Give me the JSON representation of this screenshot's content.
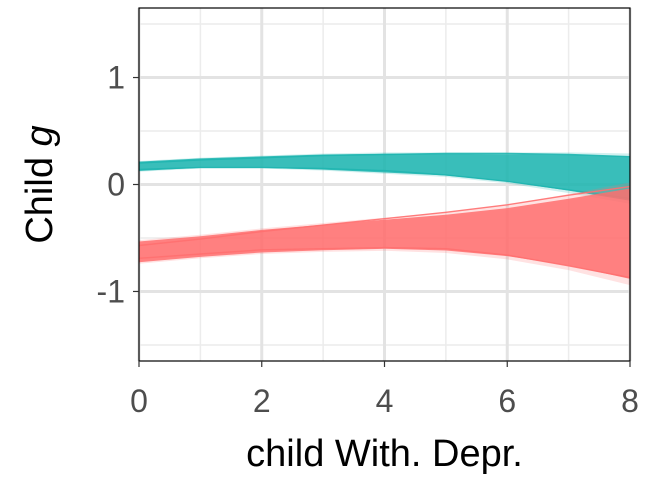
{
  "chart_data": {
    "type": "area",
    "xlabel": "child With. Depr.",
    "ylabel": {
      "prefix": "Child ",
      "symbol": "g"
    },
    "xlim": [
      0,
      8
    ],
    "ylim": [
      -1.65,
      1.65
    ],
    "x_ticks": [
      {
        "value": 0,
        "label": "0"
      },
      {
        "value": 2,
        "label": "2"
      },
      {
        "value": 4,
        "label": "4"
      },
      {
        "value": 6,
        "label": "6"
      },
      {
        "value": 8,
        "label": "8"
      }
    ],
    "y_ticks": [
      {
        "value": -1,
        "label": "-1"
      },
      {
        "value": 0,
        "label": "0"
      },
      {
        "value": 1,
        "label": "1"
      }
    ],
    "grid": true,
    "legend": "none",
    "series": [
      {
        "color": "#1FB5B0",
        "x": [
          0,
          1,
          2,
          3,
          4,
          5,
          6,
          7,
          8
        ],
        "upper": [
          0.22,
          0.25,
          0.27,
          0.29,
          0.3,
          0.3,
          0.3,
          0.3,
          0.29
        ],
        "lower": [
          0.12,
          0.15,
          0.15,
          0.13,
          0.1,
          0.07,
          0.01,
          -0.08,
          -0.18
        ],
        "upper_line": [
          0.2,
          0.23,
          0.25,
          0.27,
          0.28,
          0.29,
          0.29,
          0.28,
          0.26
        ],
        "lower_line": [
          0.14,
          0.16,
          0.16,
          0.15,
          0.13,
          0.09,
          0.03,
          -0.05,
          -0.13
        ]
      },
      {
        "color": "#FF6F6F",
        "x": [
          0,
          1,
          2,
          3,
          4,
          5,
          6,
          7,
          8
        ],
        "upper": [
          -0.52,
          -0.47,
          -0.41,
          -0.36,
          -0.31,
          -0.26,
          -0.19,
          -0.09,
          0.02
        ],
        "lower": [
          -0.74,
          -0.69,
          -0.65,
          -0.63,
          -0.62,
          -0.64,
          -0.7,
          -0.8,
          -0.94
        ],
        "upper_line": [
          -0.57,
          -0.51,
          -0.44,
          -0.38,
          -0.32,
          -0.26,
          -0.19,
          -0.1,
          -0.02
        ],
        "lower_line": [
          -0.69,
          -0.65,
          -0.61,
          -0.6,
          -0.59,
          -0.6,
          -0.66,
          -0.76,
          -0.87
        ]
      }
    ]
  }
}
